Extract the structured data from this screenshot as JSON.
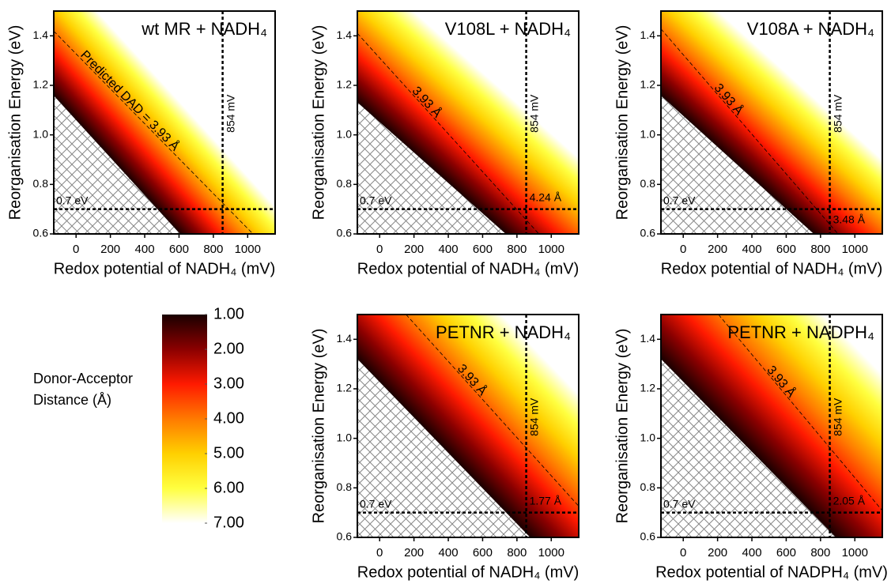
{
  "chart_data": [
    {
      "type": "heatmap",
      "title": "wt MR + NADH₄",
      "xlabel": "Redox potential of NADH₄ (mV)",
      "ylabel": "Reorganisation Energy (eV)",
      "xlim": [
        -130,
        1160
      ],
      "ylim": [
        0.6,
        1.5
      ],
      "xticks": [
        0,
        200,
        400,
        600,
        800,
        1000
      ],
      "yticks": [
        0.6,
        0.8,
        {
          "value": 1,
          "label": "1.0"
        },
        1.2,
        1.4
      ],
      "vline": {
        "value": 854,
        "label": "854 mV"
      },
      "hline": {
        "value": 0.7,
        "label": "0.7 eV"
      },
      "contour_label": "Predicted DAD = 3.93 Å"
    },
    {
      "type": "heatmap",
      "title": "V108L + NADH₄",
      "xlabel": "Redox potential of NADH₄ (mV)",
      "ylabel": "Reorganisation Energy (eV)",
      "xlim": [
        -130,
        1160
      ],
      "ylim": [
        0.6,
        1.5
      ],
      "xticks": [
        0,
        200,
        400,
        600,
        800,
        1000
      ],
      "yticks": [
        0.6,
        0.8,
        {
          "value": 1,
          "label": "1.0"
        },
        1.2,
        1.4
      ],
      "vline": {
        "value": 854,
        "label": "854 mV"
      },
      "hline": {
        "value": 0.7,
        "label": "0.7 eV"
      },
      "contour_label": "3.93 Å",
      "point_label": "4.24 Å"
    },
    {
      "type": "heatmap",
      "title": "V108A + NADH₄",
      "xlabel": "Redox potential of NADH₄ (mV)",
      "ylabel": "Reorganisation Energy (eV)",
      "xlim": [
        -130,
        1160
      ],
      "ylim": [
        0.6,
        1.5
      ],
      "xticks": [
        0,
        200,
        400,
        600,
        800,
        1000
      ],
      "yticks": [
        0.6,
        0.8,
        {
          "value": 1,
          "label": "1.0"
        },
        1.2,
        1.4
      ],
      "vline": {
        "value": 854,
        "label": "854 mV"
      },
      "hline": {
        "value": 0.7,
        "label": "0.7 eV"
      },
      "contour_label": "3.93 Å",
      "point_label": "3.48 Å"
    },
    {
      "type": "heatmap",
      "title": "PETNR + NADH₄",
      "xlabel": "Redox potential of NADH₄ (mV)",
      "ylabel": "Reorganisation Energy (eV)",
      "xlim": [
        -130,
        1160
      ],
      "ylim": [
        0.6,
        1.5
      ],
      "xticks": [
        0,
        200,
        400,
        600,
        800,
        1000
      ],
      "yticks": [
        0.6,
        0.8,
        {
          "value": 1,
          "label": "1.0"
        },
        1.2,
        1.4
      ],
      "vline": {
        "value": 854,
        "label": "854 mV"
      },
      "hline": {
        "value": 0.7,
        "label": "0.7 eV"
      },
      "contour_label": "3.93 Å",
      "point_label": "1.77 Å"
    },
    {
      "type": "heatmap",
      "title": "PETNR + NADPH₄",
      "xlabel": "Redox potential of NADPH₄ (mV)",
      "ylabel": "Reorganisation Energy (eV)",
      "xlim": [
        -130,
        1160
      ],
      "ylim": [
        0.6,
        1.5
      ],
      "xticks": [
        0,
        200,
        400,
        600,
        800,
        1000
      ],
      "yticks": [
        0.6,
        0.8,
        {
          "value": 1,
          "label": "1.0"
        },
        1.2,
        1.4
      ],
      "vline": {
        "value": 854,
        "label": "854 mV"
      },
      "hline": {
        "value": 0.7,
        "label": "0.7 eV"
      },
      "contour_label": "3.93 Å",
      "point_label": "2.05 Å"
    },
    {
      "type": "colorbar",
      "title": [
        "Donor-Acceptor",
        "Distance (Å)"
      ],
      "ylim": [
        1,
        7
      ],
      "yticks": [
        {
          "value": 1,
          "label": "1.00"
        },
        {
          "value": 2,
          "label": "2.00"
        },
        {
          "value": 3,
          "label": "3.00"
        },
        {
          "value": 4,
          "label": "4.00"
        },
        {
          "value": 5,
          "label": "5.00"
        },
        {
          "value": 6,
          "label": "6.00"
        },
        {
          "value": 7,
          "label": "7.00"
        }
      ],
      "colors": [
        "#1a0000",
        "#8b0000",
        "#ff1a00",
        "#ff7a00",
        "#ffd000",
        "#ffff40",
        "#ffffff"
      ]
    }
  ]
}
